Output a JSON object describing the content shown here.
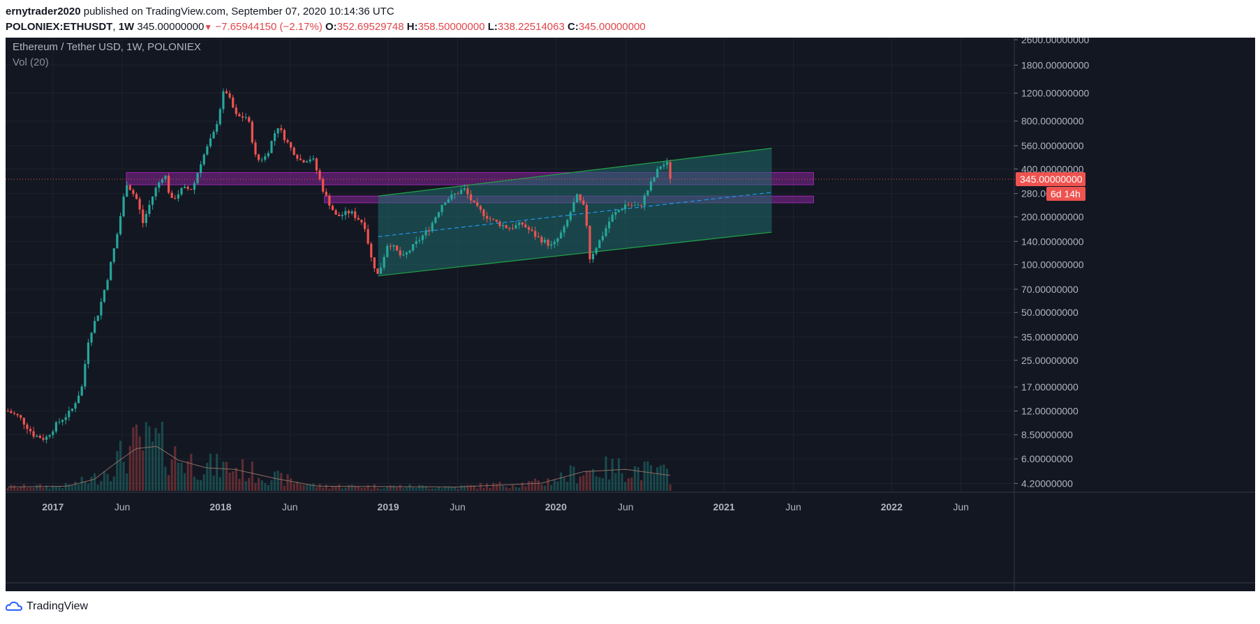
{
  "header": {
    "author": "ernytrader2020",
    "published": "published on TradingView.com, September 07, 2020 10:14:36 UTC",
    "symbol": "POLONIEX:ETHUSDT",
    "interval": "1W",
    "last": "345.00000000",
    "change": "−7.65944150 (−2.17%)",
    "o_label": "O:",
    "o_value": "352.69529748",
    "h_label": "H:",
    "h_value": "358.50000000",
    "l_label": "L:",
    "l_value": "338.22514063",
    "c_label": "C:",
    "c_value": "345.00000000"
  },
  "legend": {
    "title": "Ethereum / Tether USD, 1W, POLONIEX",
    "indicator": "Vol (20)"
  },
  "price_badge": {
    "value": "345.00000000",
    "countdown": "6d 14h"
  },
  "footer": {
    "brand": "TradingView"
  },
  "colors": {
    "background": "#131722",
    "up": "#26a69a",
    "down": "#ef5350",
    "channel_fill": "#1f6b6b",
    "channel_line": "#22a447",
    "zone": "#9c27b0",
    "midline": "#2196f3",
    "badge": "#ef5350"
  },
  "chart_data": {
    "type": "candlestick",
    "scale": "log",
    "y_ticks": [
      2600,
      1800,
      1200,
      800,
      560,
      400,
      280,
      200,
      140,
      100,
      70,
      50,
      35,
      25,
      17,
      12,
      8.5,
      6,
      4.2
    ],
    "y_tick_labels": [
      "2600.00000000",
      "1800.00000000",
      "1200.00000000",
      "800.00000000",
      "560.00000000",
      "400.00000000",
      "280.00000000",
      "200.00000000",
      "140.00000000",
      "100.00000000",
      "70.00000000",
      "50.00000000",
      "35.00000000",
      "25.00000000",
      "17.00000000",
      "12.00000000",
      "8.50000000",
      "6.00000000",
      "4.20000000"
    ],
    "x_ticks": [
      {
        "label": "2017",
        "date": "2017-01-01",
        "bold": true
      },
      {
        "label": "Jun",
        "date": "2017-06-01",
        "bold": false
      },
      {
        "label": "2018",
        "date": "2018-01-01",
        "bold": true
      },
      {
        "label": "Jun",
        "date": "2018-06-01",
        "bold": false
      },
      {
        "label": "2019",
        "date": "2019-01-01",
        "bold": true
      },
      {
        "label": "Jun",
        "date": "2019-06-01",
        "bold": false
      },
      {
        "label": "2020",
        "date": "2020-01-01",
        "bold": true
      },
      {
        "label": "Jun",
        "date": "2020-06-01",
        "bold": false
      },
      {
        "label": "2021",
        "date": "2021-01-01",
        "bold": true
      },
      {
        "label": "Jun",
        "date": "2021-06-01",
        "bold": false
      },
      {
        "label": "2022",
        "date": "2022-01-01",
        "bold": true
      },
      {
        "label": "Jun",
        "date": "2022-06-01",
        "bold": false
      }
    ],
    "x_range": [
      "2016-09-20",
      "2022-09-25"
    ],
    "y_range": [
      3.7,
      2600
    ],
    "price_path": [
      [
        "2016-09-25",
        12
      ],
      [
        "2016-10-20",
        11
      ],
      [
        "2016-11-20",
        8.5
      ],
      [
        "2016-12-15",
        8
      ],
      [
        "2017-01-10",
        10
      ],
      [
        "2017-02-10",
        12
      ],
      [
        "2017-03-05",
        17
      ],
      [
        "2017-03-20",
        35
      ],
      [
        "2017-04-10",
        50
      ],
      [
        "2017-05-01",
        85
      ],
      [
        "2017-05-20",
        150
      ],
      [
        "2017-06-10",
        330
      ],
      [
        "2017-07-05",
        250
      ],
      [
        "2017-07-15",
        180
      ],
      [
        "2017-08-10",
        290
      ],
      [
        "2017-09-01",
        380
      ],
      [
        "2017-09-15",
        250
      ],
      [
        "2017-10-10",
        300
      ],
      [
        "2017-11-01",
        300
      ],
      [
        "2017-11-20",
        450
      ],
      [
        "2017-12-20",
        700
      ],
      [
        "2018-01-10",
        1300
      ],
      [
        "2018-02-05",
        850
      ],
      [
        "2018-03-01",
        850
      ],
      [
        "2018-03-20",
        450
      ],
      [
        "2018-04-10",
        480
      ],
      [
        "2018-05-05",
        750
      ],
      [
        "2018-06-01",
        550
      ],
      [
        "2018-06-25",
        450
      ],
      [
        "2018-07-20",
        470
      ],
      [
        "2018-08-15",
        280
      ],
      [
        "2018-09-10",
        200
      ],
      [
        "2018-10-10",
        215
      ],
      [
        "2018-11-10",
        180
      ],
      [
        "2018-11-25",
        110
      ],
      [
        "2018-12-10",
        85
      ],
      [
        "2019-01-01",
        140
      ],
      [
        "2019-02-01",
        110
      ],
      [
        "2019-03-01",
        135
      ],
      [
        "2019-04-01",
        170
      ],
      [
        "2019-05-01",
        250
      ],
      [
        "2019-06-15",
        300
      ],
      [
        "2019-07-10",
        230
      ],
      [
        "2019-08-15",
        190
      ],
      [
        "2019-09-20",
        170
      ],
      [
        "2019-10-20",
        180
      ],
      [
        "2019-11-20",
        150
      ],
      [
        "2019-12-25",
        130
      ],
      [
        "2020-01-20",
        170
      ],
      [
        "2020-02-15",
        270
      ],
      [
        "2020-03-05",
        220
      ],
      [
        "2020-03-15",
        110
      ],
      [
        "2020-04-10",
        150
      ],
      [
        "2020-05-01",
        200
      ],
      [
        "2020-06-01",
        240
      ],
      [
        "2020-07-01",
        230
      ],
      [
        "2020-07-25",
        320
      ],
      [
        "2020-08-15",
        420
      ],
      [
        "2020-08-30",
        430
      ],
      [
        "2020-09-07",
        345
      ]
    ],
    "volume_ma_path": [
      [
        "2016-09-25",
        0.05
      ],
      [
        "2017-02-01",
        0.06
      ],
      [
        "2017-04-01",
        0.15
      ],
      [
        "2017-05-15",
        0.35
      ],
      [
        "2017-07-01",
        0.55
      ],
      [
        "2017-08-15",
        0.58
      ],
      [
        "2017-10-01",
        0.4
      ],
      [
        "2017-12-01",
        0.3
      ],
      [
        "2018-02-01",
        0.28
      ],
      [
        "2018-05-01",
        0.16
      ],
      [
        "2018-08-01",
        0.06
      ],
      [
        "2019-06-01",
        0.05
      ],
      [
        "2019-12-01",
        0.1
      ],
      [
        "2020-03-01",
        0.25
      ],
      [
        "2020-06-01",
        0.28
      ],
      [
        "2020-09-07",
        0.2
      ]
    ],
    "channel": {
      "start": [
        "2018-12-10",
        85,
        270
      ],
      "end": [
        "2021-04-15",
        160,
        540
      ],
      "mid_start": [
        "2018-12-10",
        150
      ],
      "mid_end": [
        "2021-04-15",
        285
      ]
    },
    "zones": [
      {
        "from": "2017-06-10",
        "to": "2021-07-15",
        "low": 318,
        "high": 380
      },
      {
        "from": "2018-08-15",
        "to": "2021-07-15",
        "low": 245,
        "high": 270
      }
    ],
    "last_price": 345
  }
}
